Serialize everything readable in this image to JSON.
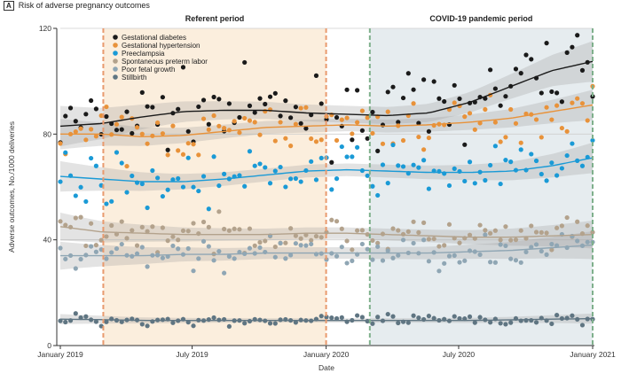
{
  "panel": {
    "letter": "A",
    "title": "Risk of adverse pregnancy outcomes"
  },
  "chart_data": {
    "type": "scatter",
    "title": "Risk of adverse pregnancy outcomes",
    "xlabel": "Date",
    "ylabel": "Adverse outcomes, No./1000 deliveries",
    "ylim": [
      0,
      120
    ],
    "yticks": [
      0,
      40,
      80,
      120
    ],
    "xlim": [
      "2019-01-01",
      "2021-01-01"
    ],
    "xticks": [
      {
        "date": "2019-01-01",
        "label": "January 2019"
      },
      {
        "date": "2019-07-01",
        "label": "July 2019"
      },
      {
        "date": "2020-01-01",
        "label": "January 2020"
      },
      {
        "date": "2020-07-01",
        "label": "July 2020"
      },
      {
        "date": "2021-01-01",
        "label": "January 2021"
      }
    ],
    "periods": [
      {
        "label": "Referent period",
        "start": "2019-03-01",
        "end": "2020-01-01",
        "color": "#fbeedd",
        "line_color": "#e89a6e"
      },
      {
        "label": "COVID-19 pandemic period",
        "start": "2020-03-01",
        "end": "2021-01-01",
        "color": "#e6ecef",
        "line_color": "#7fb08c"
      }
    ],
    "legend_position": "top-left",
    "grid": "horizontal",
    "series": [
      {
        "name": "Gestational diabetes",
        "color": "#1a1a1a",
        "trend_color": "#1a1a1a",
        "trend": [
          83,
          84,
          86.5,
          88.5,
          89,
          89,
          88,
          87.5,
          87,
          88,
          92,
          98,
          104,
          107.5
        ]
      },
      {
        "name": "Gestational hypertension",
        "color": "#e8923a",
        "trend_color": "#e8923a",
        "trend": [
          80,
          80,
          79,
          79.5,
          81,
          82.5,
          83,
          83.5,
          83,
          83.5,
          84.5,
          86,
          88.5,
          91
        ]
      },
      {
        "name": "Preeclampsia",
        "color": "#1a9ad6",
        "trend_color": "#1a9ad6",
        "trend": [
          64,
          63,
          62,
          62,
          63,
          64.5,
          66,
          66.5,
          66,
          65.5,
          65.5,
          66,
          68,
          71
        ]
      },
      {
        "name": "Spontaneous preterm labor",
        "color": "#b3a28c",
        "trend_color": "#b3a28c",
        "trend": [
          45,
          43,
          42.5,
          42,
          42,
          42,
          42.5,
          42.5,
          42,
          41.5,
          41,
          41,
          41.5,
          42
        ]
      },
      {
        "name": "Poor fetal growth",
        "color": "#8fa6b4",
        "trend_color": "#8fa6b4",
        "trend": [
          34,
          34,
          34,
          34.5,
          34.5,
          35,
          35,
          35,
          35,
          35,
          35.5,
          36,
          37,
          38
        ]
      },
      {
        "name": "Stillbirth",
        "color": "#5f7582",
        "trend_color": "#5f7582",
        "trend": [
          10,
          9.8,
          9.5,
          9.5,
          9.5,
          9.5,
          9.5,
          9.5,
          9.5,
          9.5,
          9.5,
          9.7,
          10,
          10.2
        ]
      }
    ]
  }
}
